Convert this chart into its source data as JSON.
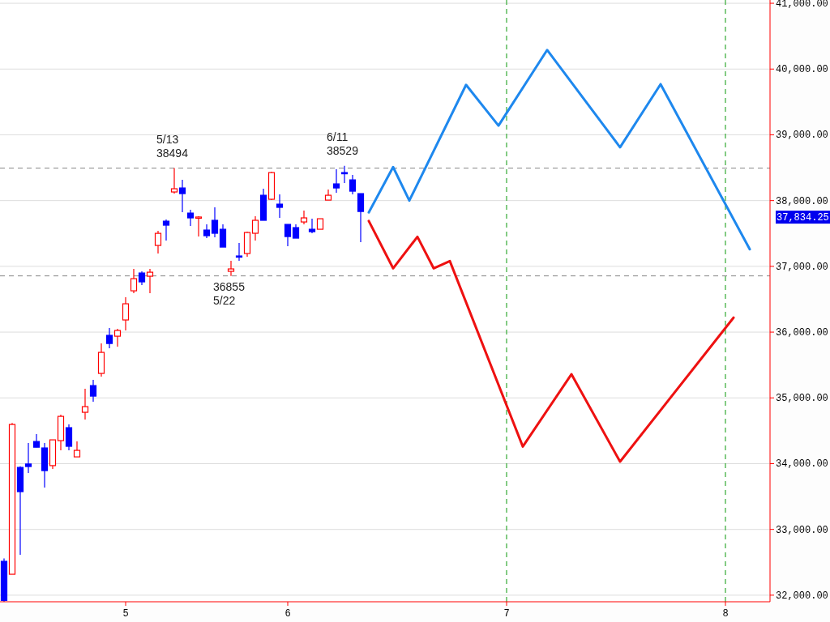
{
  "chart_data": {
    "type": "candlestick",
    "categories": [
      null,
      null,
      null,
      null,
      null,
      null,
      null,
      null,
      null,
      null,
      null,
      null,
      null,
      null,
      null,
      "5",
      null,
      null,
      null,
      null,
      null,
      null,
      null,
      null,
      null,
      null,
      null,
      null,
      null,
      null,
      null,
      null,
      null,
      null,
      null,
      "6",
      null,
      null,
      null,
      null,
      null,
      null,
      null,
      null,
      null,
      null,
      null,
      null,
      null,
      null,
      null,
      null,
      null,
      null,
      null,
      null,
      null,
      null,
      null,
      null,
      null,
      null,
      "7",
      null,
      null,
      null,
      null,
      null,
      null,
      null,
      null,
      null,
      null,
      null,
      null,
      null,
      null,
      null,
      null,
      null,
      null,
      null,
      null,
      null,
      null,
      null,
      null,
      null,
      null,
      "8",
      null,
      null,
      null,
      null,
      null
    ],
    "ohlc": [
      [
        32515,
        32560,
        31900,
        31920
      ],
      [
        32318,
        34620,
        32318,
        34596
      ],
      [
        33943,
        33960,
        32613,
        33574
      ],
      [
        33995,
        34313,
        33857,
        33956
      ],
      [
        34337,
        34448,
        34250,
        34250
      ],
      [
        34239,
        34313,
        33635,
        33894
      ],
      [
        33970,
        34362,
        33920,
        34362
      ],
      [
        34350,
        34744,
        34202,
        34719
      ],
      [
        34547,
        34596,
        34202,
        34264
      ],
      [
        34103,
        34337,
        34103,
        34202
      ],
      [
        34781,
        35138,
        34670,
        34867
      ],
      [
        35187,
        35273,
        34941,
        35027
      ],
      [
        35372,
        35827,
        35323,
        35692
      ],
      [
        35951,
        36062,
        35754,
        35827
      ],
      [
        35938,
        36050,
        35778,
        36025
      ],
      [
        36185,
        36530,
        36025,
        36431
      ],
      [
        36628,
        36961,
        36591,
        36813
      ],
      [
        36899,
        36924,
        36714,
        36764
      ],
      [
        36850,
        36961,
        36591,
        36911
      ],
      [
        37318,
        37539,
        37195,
        37502
      ],
      [
        37687,
        37712,
        37392,
        37626
      ],
      [
        38131,
        38494,
        38106,
        38180
      ],
      [
        38192,
        38315,
        37823,
        38106
      ],
      [
        37810,
        37860,
        37613,
        37737
      ],
      [
        37737,
        37761,
        37453,
        37750
      ],
      [
        37552,
        37638,
        37429,
        37466
      ],
      [
        37700,
        37897,
        37441,
        37503
      ],
      [
        37564,
        37638,
        37293,
        37293
      ],
      [
        36924,
        37084,
        36855,
        36961
      ],
      [
        37158,
        37355,
        37084,
        37145
      ],
      [
        37195,
        37527,
        37145,
        37515
      ],
      [
        37503,
        37761,
        37392,
        37700
      ],
      [
        38081,
        38180,
        37700,
        37700
      ],
      [
        38020,
        38438,
        38007,
        38426
      ],
      [
        37946,
        38094,
        37737,
        37897
      ],
      [
        37638,
        37638,
        37305,
        37453
      ],
      [
        37589,
        37638,
        37429,
        37429
      ],
      [
        37675,
        37847,
        37638,
        37737
      ],
      [
        37564,
        37724,
        37503,
        37527
      ],
      [
        37564,
        37724,
        37564,
        37724
      ],
      [
        38007,
        38168,
        38007,
        38081
      ],
      [
        38254,
        38475,
        38118,
        38192
      ],
      [
        38426,
        38529,
        38266,
        38414
      ],
      [
        38315,
        38389,
        38094,
        38143
      ],
      [
        38106,
        38106,
        37369,
        37834.25
      ],
      null,
      null,
      null,
      null,
      null,
      null,
      null,
      null,
      null,
      null,
      null,
      null,
      null,
      null,
      null,
      null,
      null,
      null,
      null,
      null,
      null,
      null,
      null,
      null,
      null,
      null,
      null,
      null,
      null,
      null,
      null,
      null,
      null,
      null,
      null,
      null,
      null,
      null,
      null,
      null,
      null,
      null,
      null,
      null,
      null,
      null,
      null,
      null,
      null,
      null
    ],
    "series": [
      {
        "type": "line",
        "color": "#1e88ee",
        "values": [
          null,
          null,
          null,
          null,
          null,
          null,
          null,
          null,
          null,
          null,
          null,
          null,
          null,
          null,
          null,
          null,
          null,
          null,
          null,
          null,
          null,
          null,
          null,
          null,
          null,
          null,
          null,
          null,
          null,
          null,
          null,
          null,
          null,
          null,
          null,
          null,
          null,
          null,
          null,
          null,
          null,
          null,
          null,
          null,
          null,
          37820,
          null,
          null,
          38510,
          null,
          38000,
          null,
          null,
          null,
          null,
          null,
          null,
          39760,
          null,
          null,
          null,
          39140,
          null,
          null,
          null,
          null,
          null,
          40290,
          null,
          null,
          null,
          null,
          null,
          null,
          null,
          null,
          38810,
          null,
          null,
          null,
          null,
          39770,
          null,
          null,
          null,
          null,
          null,
          null,
          null,
          null,
          null,
          null,
          37260,
          null,
          null
        ]
      },
      {
        "type": "line",
        "color": "#ee1111",
        "values": [
          null,
          null,
          null,
          null,
          null,
          null,
          null,
          null,
          null,
          null,
          null,
          null,
          null,
          null,
          null,
          null,
          null,
          null,
          null,
          null,
          null,
          null,
          null,
          null,
          null,
          null,
          null,
          null,
          null,
          null,
          null,
          null,
          null,
          null,
          null,
          null,
          null,
          null,
          null,
          null,
          null,
          null,
          null,
          null,
          null,
          37690,
          null,
          null,
          36970,
          null,
          null,
          37450,
          null,
          36970,
          null,
          37080,
          null,
          null,
          null,
          null,
          null,
          null,
          null,
          null,
          34260,
          null,
          null,
          null,
          null,
          null,
          35360,
          null,
          null,
          null,
          null,
          null,
          34030,
          null,
          null,
          null,
          null,
          null,
          null,
          null,
          null,
          null,
          null,
          null,
          null,
          null,
          36220,
          null,
          null,
          null,
          null
        ]
      }
    ],
    "ylim": [
      31900,
      41050
    ],
    "yticks": [
      {
        "value": 32000,
        "label": "32,000.00"
      },
      {
        "value": 33000,
        "label": "33,000.00"
      },
      {
        "value": 34000,
        "label": "34,000.00"
      },
      {
        "value": 35000,
        "label": "35,000.00"
      },
      {
        "value": 36000,
        "label": "36,000.00"
      },
      {
        "value": 37000,
        "label": "37,000.00"
      },
      {
        "value": 38000,
        "label": "38,000.00"
      },
      {
        "value": 39000,
        "label": "39,000.00"
      },
      {
        "value": 40000,
        "label": "40,000.00"
      },
      {
        "value": 41000,
        "label": "41,000.00"
      }
    ],
    "grid": "y",
    "ref_lines": [
      {
        "axis": "x",
        "value": "7",
        "color": "#33aa33",
        "line_style": "dashed"
      },
      {
        "axis": "x",
        "value": "8",
        "color": "#33aa33",
        "line_style": "dashed"
      },
      {
        "axis": "y",
        "value": 38494,
        "color": "#888888",
        "line_style": "dashed"
      },
      {
        "axis": "y",
        "value": 36855,
        "color": "#888888",
        "line_style": "dashed"
      }
    ],
    "annotations": [
      {
        "text": "5/13\n38494",
        "y": 38494
      },
      {
        "text": "6/11\n38529",
        "y": 38529
      },
      {
        "text": "36855\n5/22",
        "y": 36855
      },
      "37,834.25"
    ]
  }
}
